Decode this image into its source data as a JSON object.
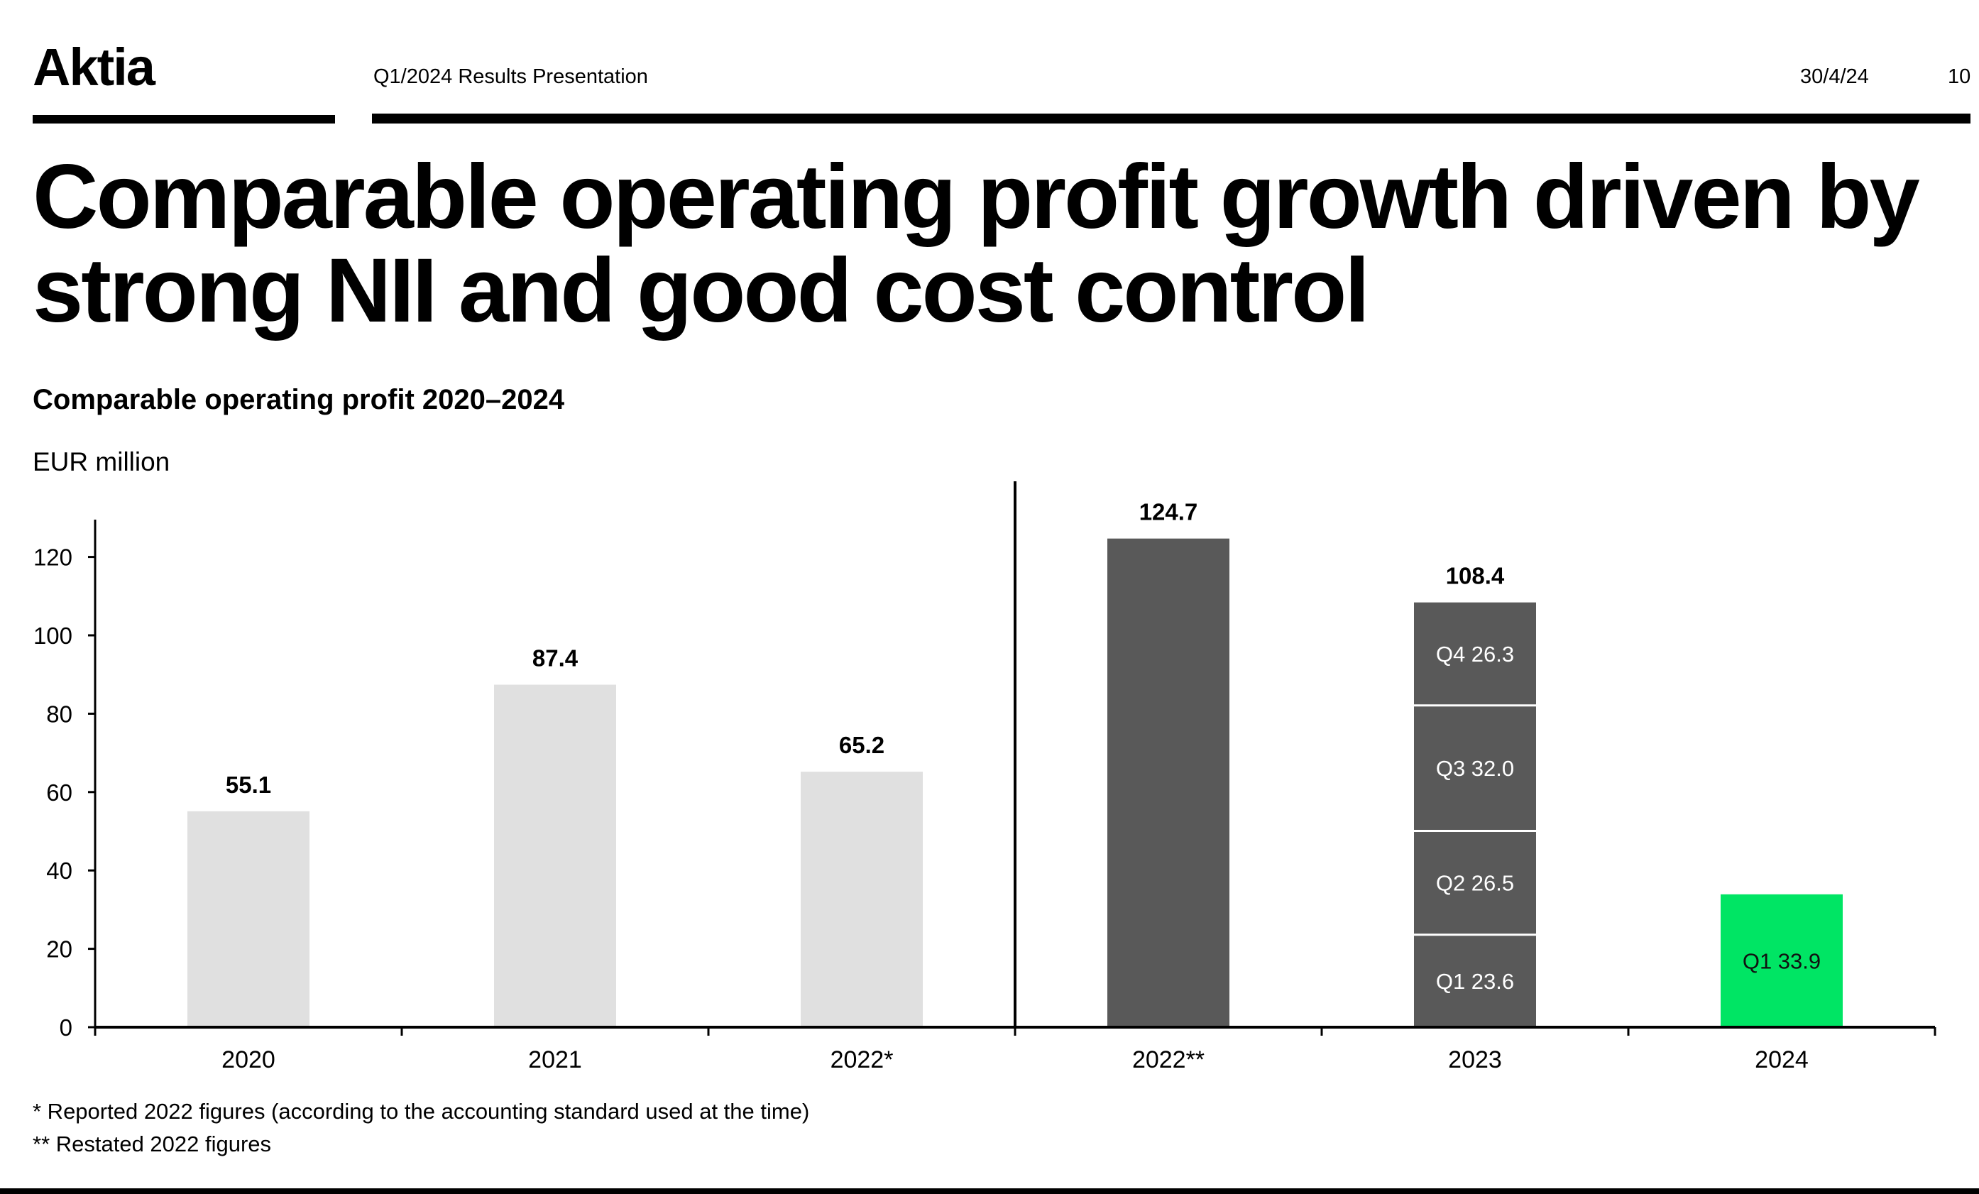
{
  "header": {
    "logo": "Aktia",
    "deck_title": "Q1/2024 Results Presentation",
    "date": "30/4/24",
    "page_number": "10"
  },
  "headline": "Comparable operating profit growth driven by strong NII and good cost control",
  "colors": {
    "bar_reported": "#e0e0e0",
    "bar_restated": "#595959",
    "bar_current": "#00e564",
    "segment_divider": "#ffffff",
    "axis": "#000000"
  },
  "chart_data": {
    "type": "bar",
    "title": "Comparable operating profit 2020–2024",
    "ylabel": "EUR million",
    "xlabel": "",
    "ylim": [
      0,
      130
    ],
    "yticks": [
      0,
      20,
      40,
      60,
      80,
      100,
      120
    ],
    "categories": [
      "2020",
      "2021",
      "2022*",
      "2022**",
      "2023",
      "2024"
    ],
    "bars": [
      {
        "category": "2020",
        "value": 55.1,
        "label": "55.1",
        "style": "reported"
      },
      {
        "category": "2021",
        "value": 87.4,
        "label": "87.4",
        "style": "reported"
      },
      {
        "category": "2022*",
        "value": 65.2,
        "label": "65.2",
        "style": "reported"
      },
      {
        "category": "2022**",
        "value": 124.7,
        "label": "124.7",
        "style": "restated"
      },
      {
        "category": "2023",
        "value": 108.4,
        "label": "108.4",
        "style": "restated",
        "segments": [
          {
            "name": "Q1",
            "value": 23.6,
            "label": "Q1 23.6"
          },
          {
            "name": "Q2",
            "value": 26.5,
            "label": "Q2 26.5"
          },
          {
            "name": "Q3",
            "value": 32.0,
            "label": "Q3 32.0"
          },
          {
            "name": "Q4",
            "value": 26.3,
            "label": "Q4 26.3"
          }
        ]
      },
      {
        "category": "2024",
        "value": 33.9,
        "label": "",
        "style": "current",
        "segments": [
          {
            "name": "Q1",
            "value": 33.9,
            "label": "Q1 33.9"
          }
        ]
      }
    ],
    "divider_after": "2022*",
    "grid": false,
    "legend": "none"
  },
  "footnotes": [
    "* Reported 2022 figures (according to the accounting standard used at the time)",
    "** Restated 2022 figures"
  ]
}
